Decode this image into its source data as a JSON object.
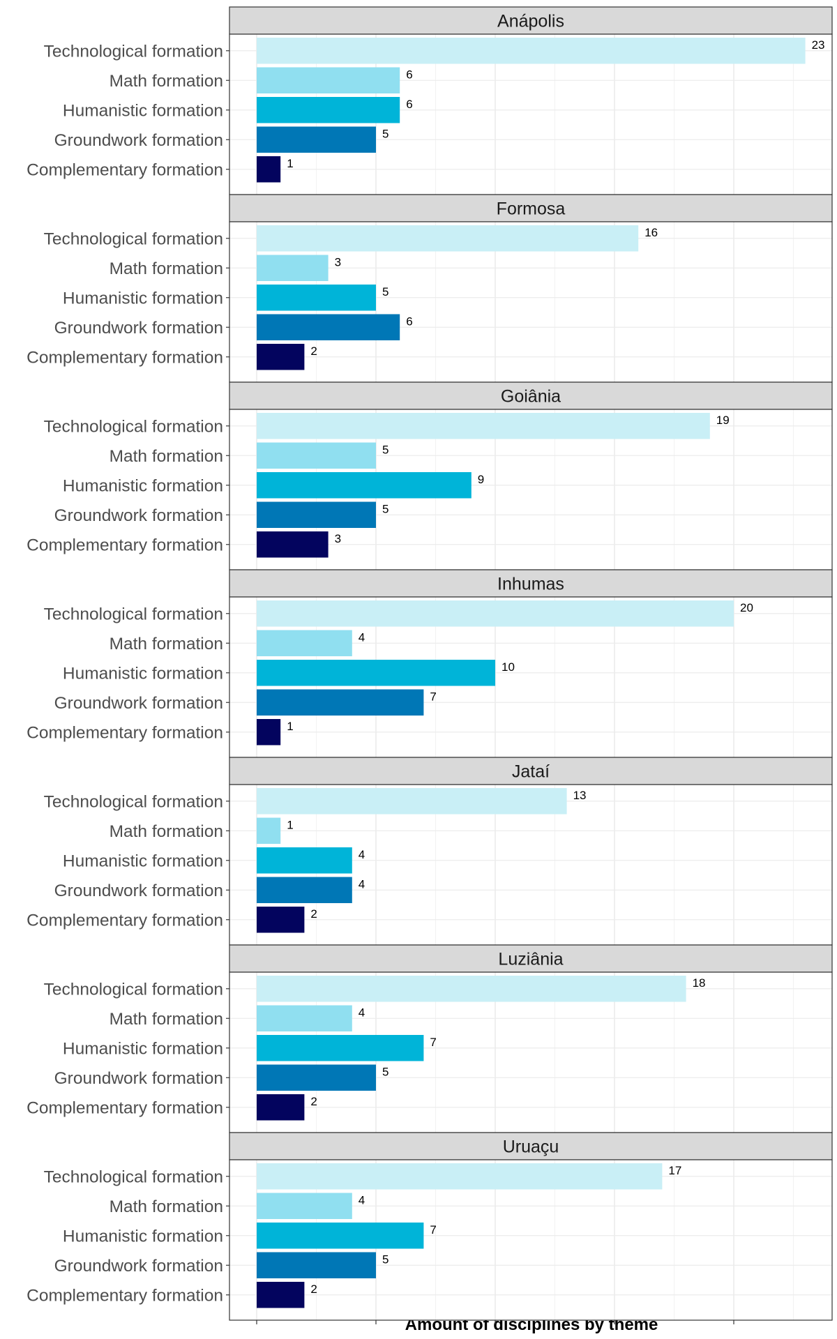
{
  "chart_data": {
    "type": "bar",
    "orientation": "horizontal",
    "faceted": true,
    "xlabel": "Amount of disciplines by theme",
    "ylabel": "",
    "xlim": [
      0,
      24
    ],
    "grid": true,
    "categories": [
      "Technological formation",
      "Math formation",
      "Humanistic formation",
      "Groundwork formation",
      "Complementary formation"
    ],
    "category_colors": [
      "#c9eff6",
      "#90dff0",
      "#00b4d8",
      "#0077b6",
      "#03045e"
    ],
    "facets": [
      {
        "name": "Anápolis",
        "values": [
          23,
          6,
          6,
          5,
          1
        ]
      },
      {
        "name": "Formosa",
        "values": [
          16,
          3,
          5,
          6,
          2
        ]
      },
      {
        "name": "Goiânia",
        "values": [
          19,
          5,
          9,
          5,
          3
        ]
      },
      {
        "name": "Inhumas",
        "values": [
          20,
          4,
          10,
          7,
          1
        ]
      },
      {
        "name": "Jataí",
        "values": [
          13,
          1,
          4,
          4,
          2
        ]
      },
      {
        "name": "Luziânia",
        "values": [
          18,
          4,
          7,
          5,
          2
        ]
      },
      {
        "name": "Uruaçu",
        "values": [
          17,
          4,
          7,
          5,
          2
        ]
      }
    ]
  }
}
